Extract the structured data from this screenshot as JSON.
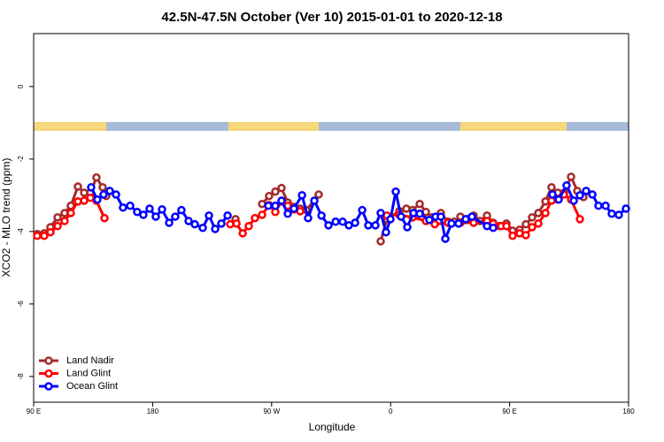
{
  "chart_data": {
    "type": "line",
    "title": "42.5N-47.5N October (Ver 10)   2015-01-01 to 2020-12-18",
    "x_label": "Longitude",
    "y_label": "XCO2 - MLO trend (ppm)",
    "xlim": [
      90,
      540
    ],
    "xticks": [
      {
        "value": 90,
        "label": "90 E"
      },
      180,
      {
        "value": 270,
        "label": "90 W"
      },
      {
        "value": 360,
        "label": "0"
      },
      {
        "value": 450,
        "label": "90 E"
      },
      {
        "value": 540,
        "label": "180"
      }
    ],
    "ylim": [
      -8.71,
      1.46
    ],
    "yticks": [
      0,
      -2,
      -4,
      -6,
      -8
    ],
    "legend": "bottom-left",
    "series": [
      {
        "name": "Land Nadir",
        "color": "#a52a2a",
        "x": [
          92.7,
          98.0,
          102.7,
          108.1,
          113.4,
          118.1,
          123.5,
          128.2,
          132.9,
          137.5,
          142.2,
          144.9,
          null,
          242.7,
          null,
          262.8,
          268.1,
          272.8,
          277.5,
          282.2,
          286.9,
          291.6,
          296.3,
          305.6,
          null,
          352.5,
          357.2,
          366.6,
          371.9,
          376.6,
          382.0,
          386.7,
          391.3,
          398.0,
          403.4,
          408.1,
          412.8,
          418.1,
          422.8,
          427.5,
          432.9,
          437.6,
          442.2,
          447.6,
          452.3,
          457.6,
          462.3,
          467.0,
          471.7,
          477.1,
          481.7,
          486.4,
          491.1,
          496.5,
          501.2,
          505.9
        ],
        "values": [
          -4.07,
          -4.05,
          -3.88,
          -3.61,
          -3.49,
          -3.29,
          -2.76,
          -2.93,
          -2.93,
          -2.51,
          -2.78,
          -3.02,
          null,
          -3.66,
          null,
          -3.24,
          -3.02,
          -2.9,
          -2.8,
          -3.2,
          -3.32,
          -3.37,
          -3.41,
          -2.98,
          null,
          -4.27,
          -3.66,
          -3.44,
          -3.37,
          -3.41,
          -3.24,
          -3.46,
          -3.61,
          -3.49,
          -3.73,
          -3.73,
          -3.59,
          -3.66,
          -3.56,
          -3.71,
          -3.56,
          -3.76,
          -3.85,
          -3.78,
          -3.98,
          -3.95,
          -3.8,
          -3.61,
          -3.49,
          -3.17,
          -2.78,
          -2.93,
          -2.93,
          -2.49,
          -2.88,
          -3.05
        ]
      },
      {
        "name": "Land Glint",
        "color": "#ff0000",
        "x": [
          92.7,
          98.0,
          102.7,
          108.1,
          113.4,
          118.1,
          123.5,
          128.2,
          132.9,
          137.5,
          143.6,
          null,
          238.7,
          243.4,
          248.1,
          252.7,
          257.4,
          262.8,
          268.1,
          272.8,
          277.5,
          282.2,
          286.9,
          291.6,
          null,
          357.2,
          366.6,
          376.6,
          386.7,
          393.4,
          403.4,
          412.8,
          422.8,
          432.9,
          437.6,
          443.6,
          447.6,
          452.3,
          457.6,
          462.3,
          467.0,
          471.7,
          477.1,
          481.7,
          486.4,
          491.1,
          496.5,
          503.2
        ],
        "values": [
          -4.12,
          -4.12,
          -4.02,
          -3.85,
          -3.71,
          -3.49,
          -3.17,
          -3.15,
          -3.07,
          -3.15,
          -3.63,
          null,
          -3.8,
          -3.78,
          -4.05,
          -3.85,
          -3.63,
          -3.54,
          -3.27,
          -3.46,
          -3.17,
          -3.29,
          -3.39,
          -3.44,
          null,
          -3.56,
          -3.54,
          -3.61,
          -3.71,
          -3.8,
          -3.76,
          -3.76,
          -3.76,
          -3.71,
          -3.78,
          -3.85,
          -3.85,
          -4.12,
          -4.05,
          -4.1,
          -3.88,
          -3.78,
          -3.49,
          -3.15,
          -3.12,
          -2.98,
          -3.12,
          -3.66
        ]
      },
      {
        "name": "Ocean Glint",
        "color": "#0000ff",
        "x": [
          133.5,
          138.2,
          142.9,
          147.6,
          152.3,
          157.6,
          163.0,
          168.3,
          173.0,
          177.7,
          182.4,
          187.1,
          192.5,
          197.1,
          201.8,
          207.2,
          211.9,
          217.9,
          222.6,
          227.3,
          232.0,
          236.7,
          null,
          267.5,
          272.8,
          277.5,
          282.2,
          286.9,
          293.0,
          297.6,
          302.3,
          307.7,
          313.0,
          318.4,
          323.7,
          328.4,
          333.1,
          338.5,
          343.1,
          348.5,
          352.5,
          356.5,
          359.9,
          363.9,
          367.9,
          372.6,
          377.3,
          382.0,
          389.3,
          394.0,
          398.0,
          401.4,
          406.1,
          411.4,
          416.8,
          421.5,
          432.9,
          437.6,
          null,
          482.4,
          487.1,
          493.1,
          498.5,
          503.2,
          507.9,
          512.6,
          517.2,
          522.6,
          527.3,
          532.6,
          538.0
        ],
        "values": [
          -2.78,
          -3.12,
          -2.98,
          -2.88,
          -2.98,
          -3.34,
          -3.29,
          -3.46,
          -3.54,
          -3.37,
          -3.59,
          -3.39,
          -3.76,
          -3.59,
          -3.41,
          -3.71,
          -3.8,
          -3.9,
          -3.56,
          -3.93,
          -3.78,
          -3.56,
          null,
          -3.29,
          -3.29,
          -3.15,
          -3.51,
          -3.37,
          -3.0,
          -3.63,
          -3.15,
          -3.56,
          -3.83,
          -3.73,
          -3.73,
          -3.83,
          -3.76,
          -3.41,
          -3.83,
          -3.83,
          -3.49,
          -4.02,
          -3.66,
          -2.9,
          -3.59,
          -3.88,
          -3.49,
          -3.51,
          -3.68,
          -3.59,
          -3.59,
          -4.2,
          -3.78,
          -3.78,
          -3.66,
          -3.59,
          -3.85,
          -3.9,
          null,
          -2.98,
          -3.12,
          -2.73,
          -3.15,
          -3.0,
          -2.88,
          -2.98,
          -3.29,
          -3.29,
          -3.51,
          -3.54,
          -3.37
        ]
      }
    ]
  }
}
